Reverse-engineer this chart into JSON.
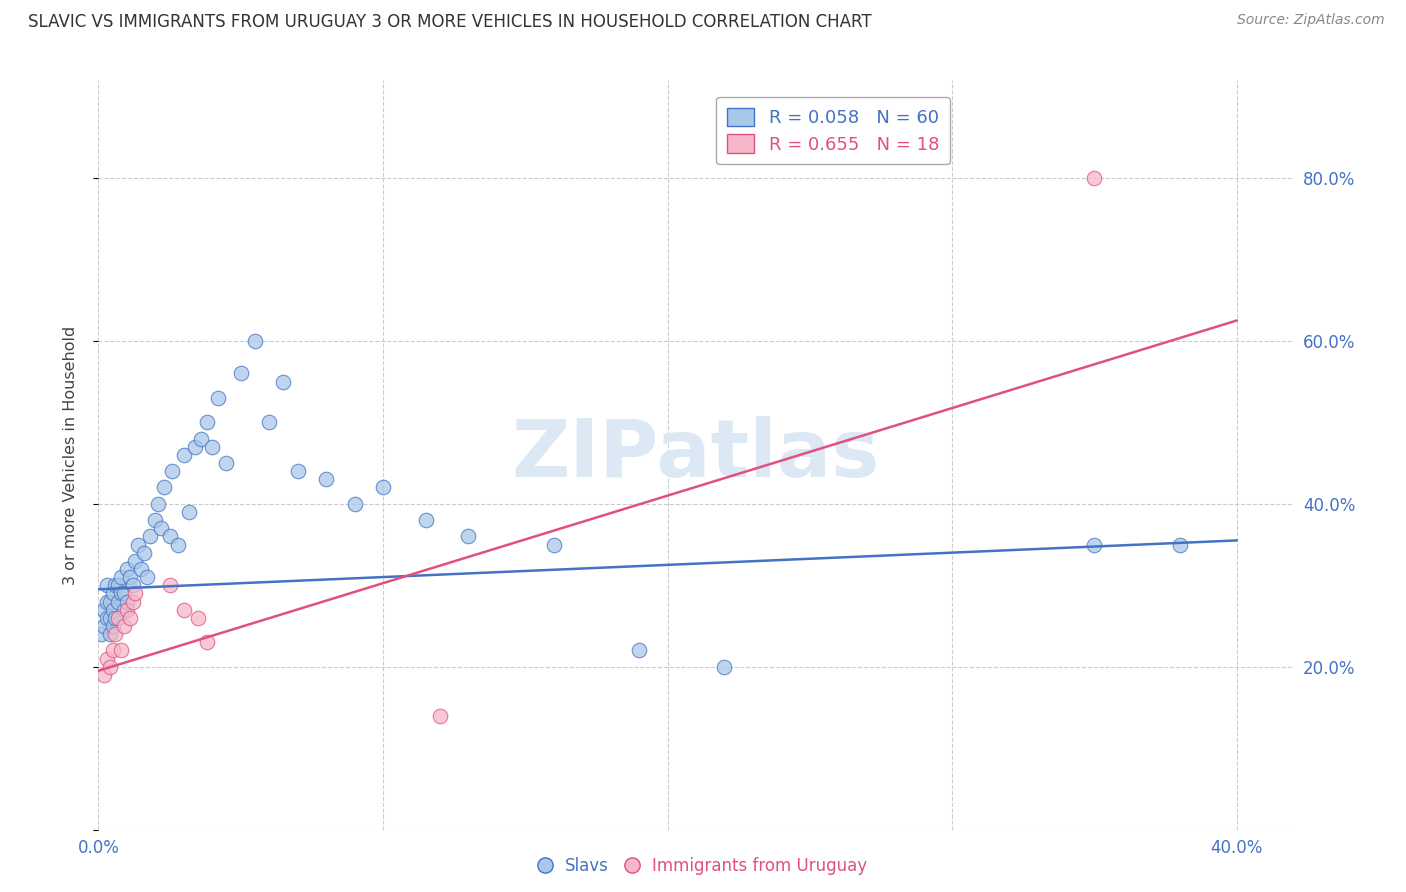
{
  "title": "SLAVIC VS IMMIGRANTS FROM URUGUAY 3 OR MORE VEHICLES IN HOUSEHOLD CORRELATION CHART",
  "source": "Source: ZipAtlas.com",
  "ylabel": "3 or more Vehicles in Household",
  "watermark": "ZIPatlas",
  "xlim": [
    0.0,
    0.42
  ],
  "ylim": [
    0.0,
    0.92
  ],
  "xticks": [
    0.0,
    0.1,
    0.2,
    0.3,
    0.4
  ],
  "xtick_labels": [
    "0.0%",
    "",
    "",
    "",
    "40.0%"
  ],
  "yticks": [
    0.2,
    0.4,
    0.6,
    0.8
  ],
  "ytick_labels_right": [
    "20.0%",
    "40.0%",
    "60.0%",
    "80.0%"
  ],
  "blue_R": 0.058,
  "blue_N": 60,
  "pink_R": 0.655,
  "pink_N": 18,
  "blue_color": "#a8c8e8",
  "pink_color": "#f4b8c8",
  "blue_line_color": "#4472c4",
  "pink_line_color": "#e05080",
  "background_color": "#ffffff",
  "grid_color": "#cccccc",
  "blue_scatter_x": [
    0.001,
    0.002,
    0.002,
    0.003,
    0.003,
    0.003,
    0.004,
    0.004,
    0.004,
    0.005,
    0.005,
    0.005,
    0.006,
    0.006,
    0.007,
    0.007,
    0.008,
    0.008,
    0.009,
    0.009,
    0.01,
    0.01,
    0.011,
    0.012,
    0.013,
    0.014,
    0.015,
    0.016,
    0.017,
    0.018,
    0.02,
    0.021,
    0.022,
    0.023,
    0.025,
    0.026,
    0.028,
    0.03,
    0.032,
    0.034,
    0.036,
    0.038,
    0.04,
    0.042,
    0.045,
    0.05,
    0.055,
    0.06,
    0.065,
    0.07,
    0.08,
    0.09,
    0.1,
    0.115,
    0.13,
    0.16,
    0.19,
    0.22,
    0.35,
    0.38
  ],
  "blue_scatter_y": [
    0.24,
    0.25,
    0.27,
    0.26,
    0.28,
    0.3,
    0.24,
    0.26,
    0.28,
    0.25,
    0.27,
    0.29,
    0.3,
    0.26,
    0.28,
    0.3,
    0.29,
    0.31,
    0.27,
    0.29,
    0.32,
    0.28,
    0.31,
    0.3,
    0.33,
    0.35,
    0.32,
    0.34,
    0.31,
    0.36,
    0.38,
    0.4,
    0.37,
    0.42,
    0.36,
    0.44,
    0.35,
    0.46,
    0.39,
    0.47,
    0.48,
    0.5,
    0.47,
    0.53,
    0.45,
    0.56,
    0.6,
    0.5,
    0.55,
    0.44,
    0.43,
    0.4,
    0.42,
    0.38,
    0.36,
    0.35,
    0.22,
    0.2,
    0.35,
    0.35
  ],
  "pink_scatter_x": [
    0.002,
    0.003,
    0.004,
    0.005,
    0.006,
    0.007,
    0.008,
    0.009,
    0.01,
    0.011,
    0.012,
    0.013,
    0.025,
    0.03,
    0.035,
    0.038,
    0.12,
    0.35
  ],
  "pink_scatter_y": [
    0.19,
    0.21,
    0.2,
    0.22,
    0.24,
    0.26,
    0.22,
    0.25,
    0.27,
    0.26,
    0.28,
    0.29,
    0.3,
    0.27,
    0.26,
    0.23,
    0.14,
    0.8
  ],
  "blue_line_x0": 0.0,
  "blue_line_y0": 0.295,
  "blue_line_x1": 0.4,
  "blue_line_y1": 0.355,
  "pink_line_x0": 0.0,
  "pink_line_y0": 0.195,
  "pink_line_x1": 0.4,
  "pink_line_y1": 0.625
}
